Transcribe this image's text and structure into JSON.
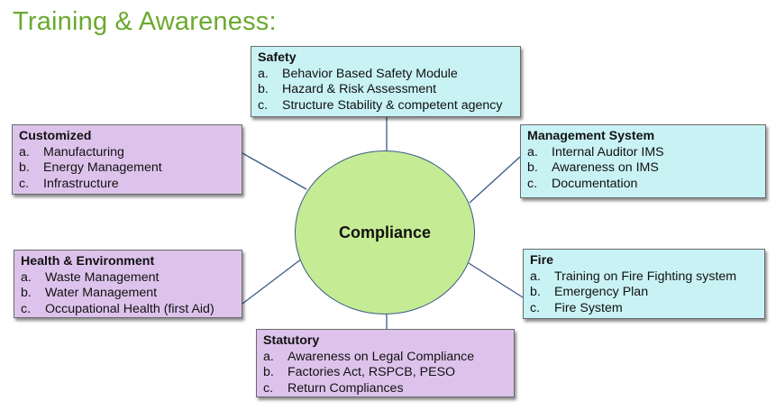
{
  "title": "Training & Awareness:",
  "hub": "Compliance",
  "boxes": {
    "safety": {
      "title": "Safety",
      "items": [
        {
          "m": "a.",
          "t": "Behavior Based Safety Module"
        },
        {
          "m": "b.",
          "t": "Hazard & Risk Assessment"
        },
        {
          "m": "c.",
          "t": "Structure Stability & competent agency"
        }
      ]
    },
    "customized": {
      "title": "Customized",
      "items": [
        {
          "m": "a.",
          "t": "Manufacturing"
        },
        {
          "m": "b.",
          "t": "Energy Management"
        },
        {
          "m": "c.",
          "t": "Infrastructure"
        }
      ]
    },
    "management": {
      "title": "Management System",
      "items": [
        {
          "m": "a.",
          "t": "Internal Auditor IMS"
        },
        {
          "m": "b.",
          "t": "Awareness on IMS"
        },
        {
          "m": "c.",
          "t": "Documentation"
        }
      ]
    },
    "health": {
      "title": "Health & Environment",
      "items": [
        {
          "m": "a.",
          "t": "Waste Management"
        },
        {
          "m": "b.",
          "t": "Water Management"
        },
        {
          "m": "c.",
          "t": "Occupational Health (first Aid)"
        }
      ]
    },
    "fire": {
      "title": "Fire",
      "items": [
        {
          "m": "a.",
          "t": "Training on Fire Fighting system"
        },
        {
          "m": "b.",
          "t": "Emergency Plan"
        },
        {
          "m": "c.",
          "t": "Fire System"
        }
      ]
    },
    "statutory": {
      "title": "Statutory",
      "items": [
        {
          "m": "a.",
          "t": "Awareness on Legal Compliance"
        },
        {
          "m": "b.",
          "t": "Factories Act, RSPCB, PESO"
        },
        {
          "m": "c.",
          "t": "Return Compliances"
        }
      ]
    }
  },
  "colors": {
    "title": "#6aaa2e",
    "hub_fill": "#c5ec94",
    "cyan_box": "#c9f2f5",
    "purple_box": "#ddc3ec",
    "connector": "#3a5a86"
  }
}
